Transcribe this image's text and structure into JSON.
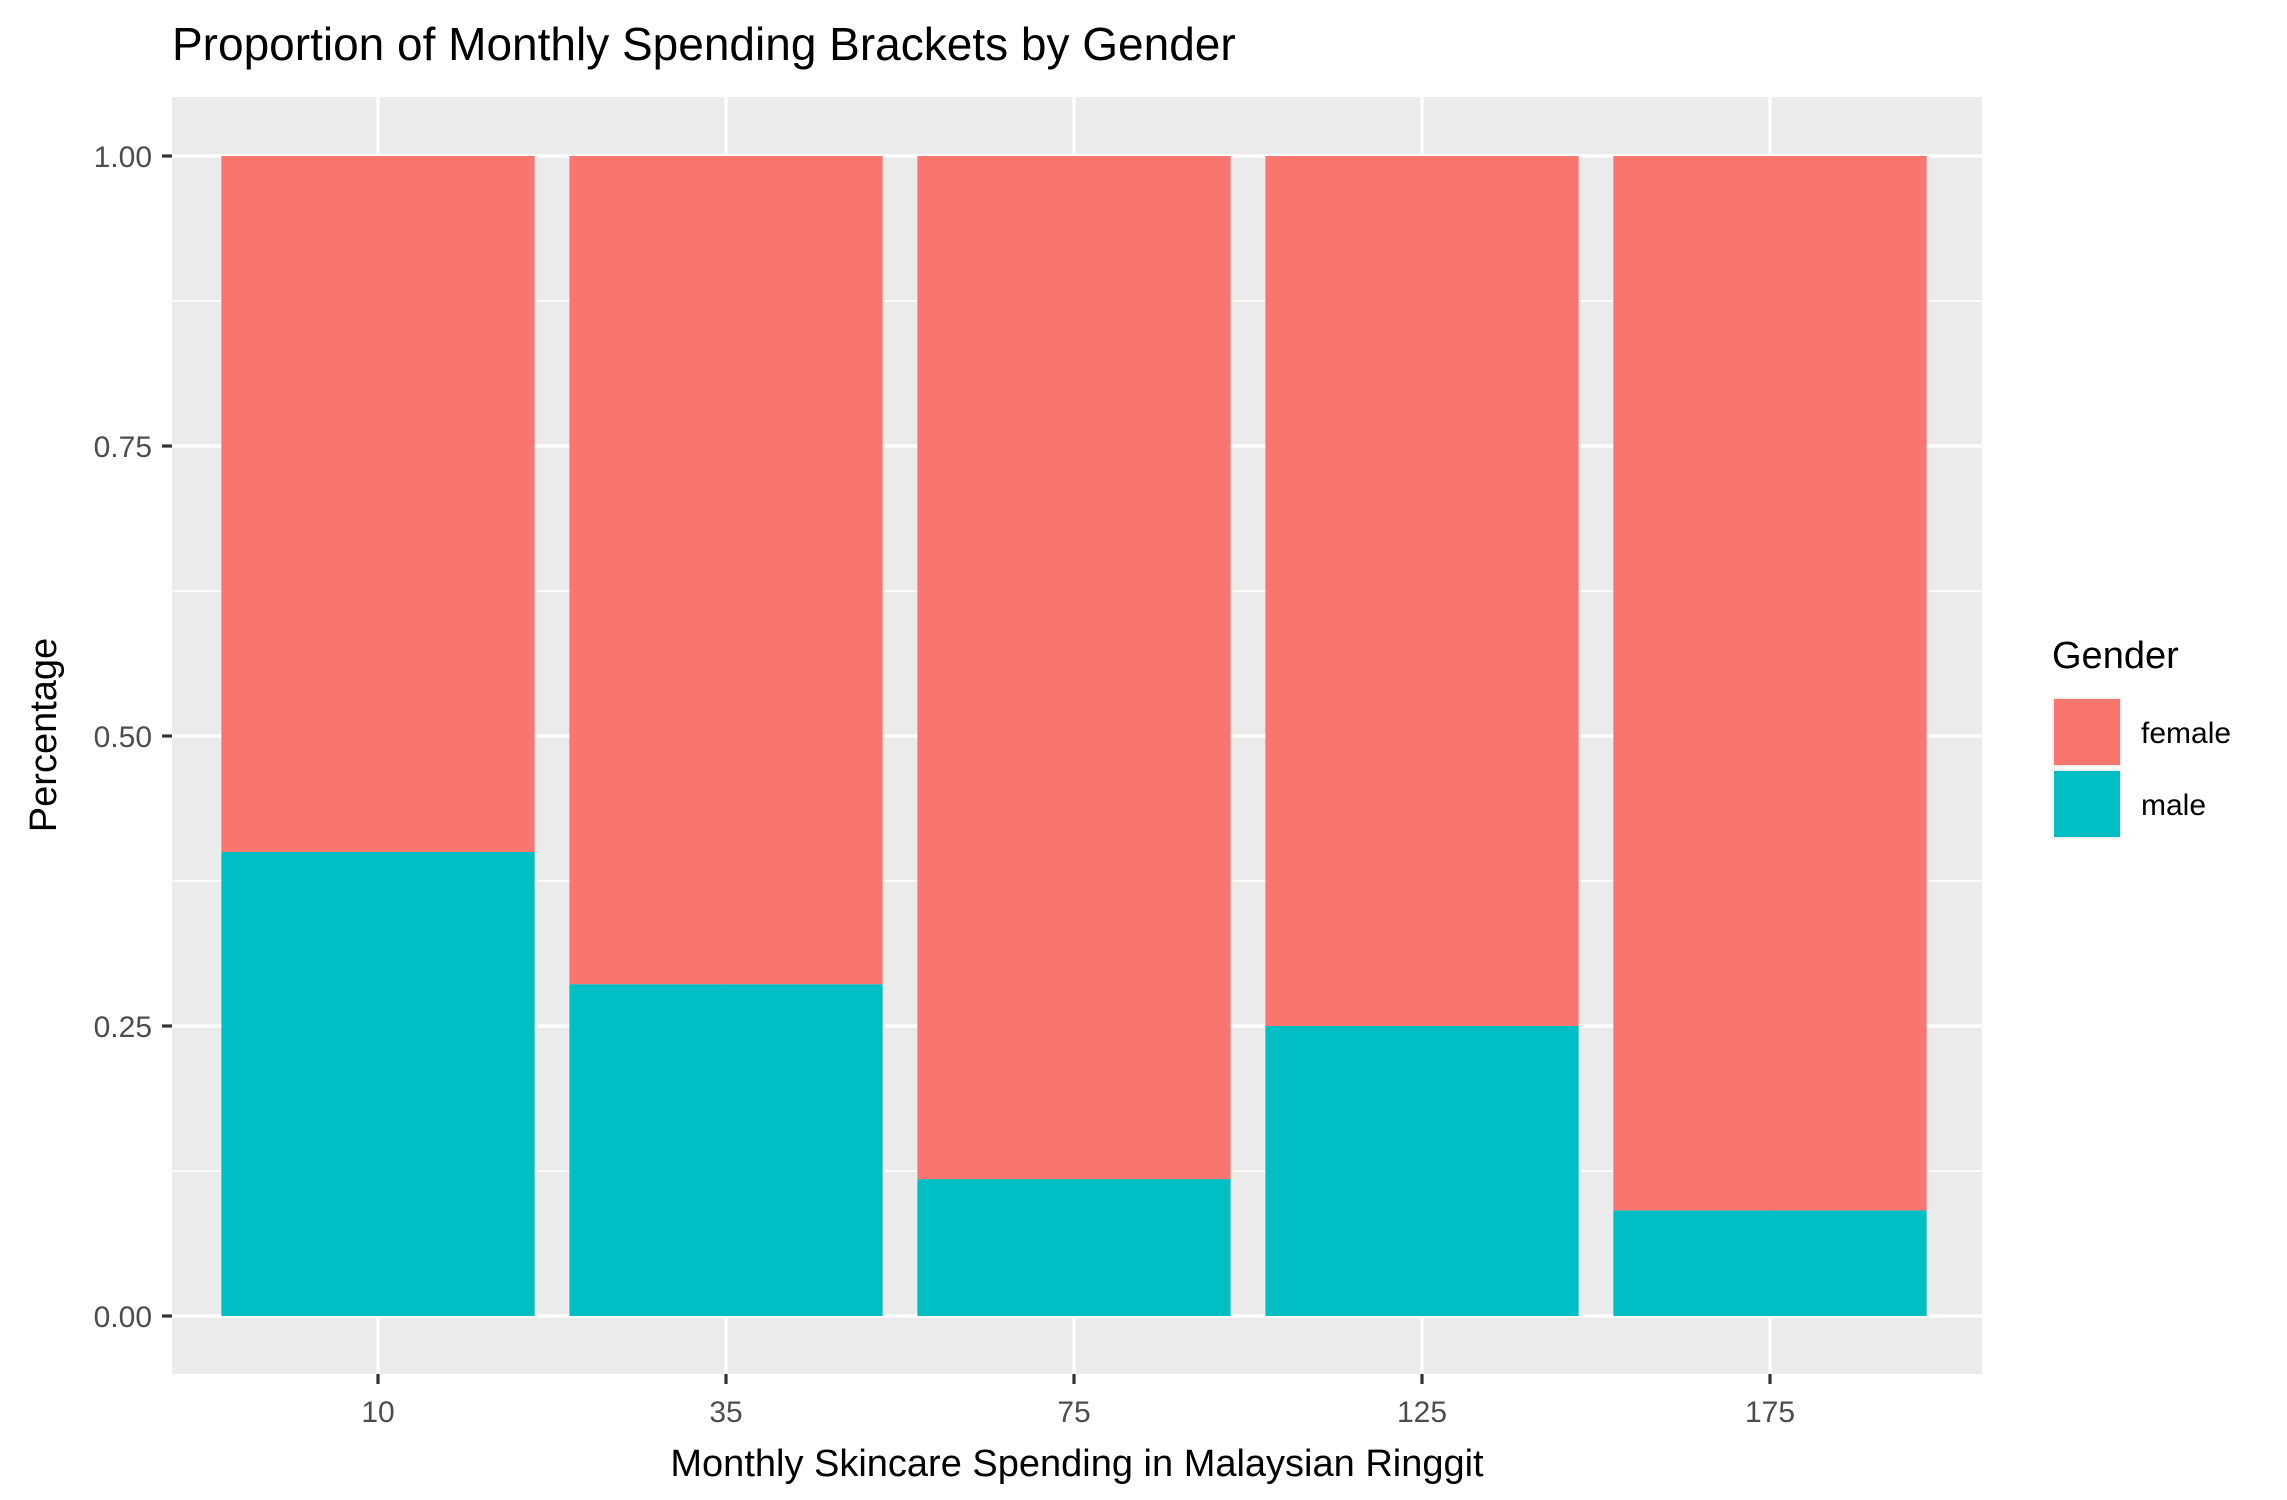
{
  "chart_data": {
    "type": "bar",
    "stacked": true,
    "title": "Proportion of Monthly Spending Brackets by Gender",
    "xlabel": "Monthly Skincare Spending in Malaysian Ringgit",
    "ylabel": "Percentage",
    "categories": [
      "10",
      "35",
      "75",
      "125",
      "175"
    ],
    "ylim": [
      0,
      1
    ],
    "y_ticks": [
      "0.00",
      "0.25",
      "0.50",
      "0.75",
      "1.00"
    ],
    "grid": true,
    "legend_position": "right",
    "legend_title": "Gender",
    "series": [
      {
        "name": "female",
        "color": "#F8766D",
        "values": [
          0.6,
          0.714,
          0.882,
          0.75,
          0.909
        ]
      },
      {
        "name": "male",
        "color": "#00BFC4",
        "values": [
          0.4,
          0.286,
          0.118,
          0.25,
          0.091
        ]
      }
    ]
  }
}
